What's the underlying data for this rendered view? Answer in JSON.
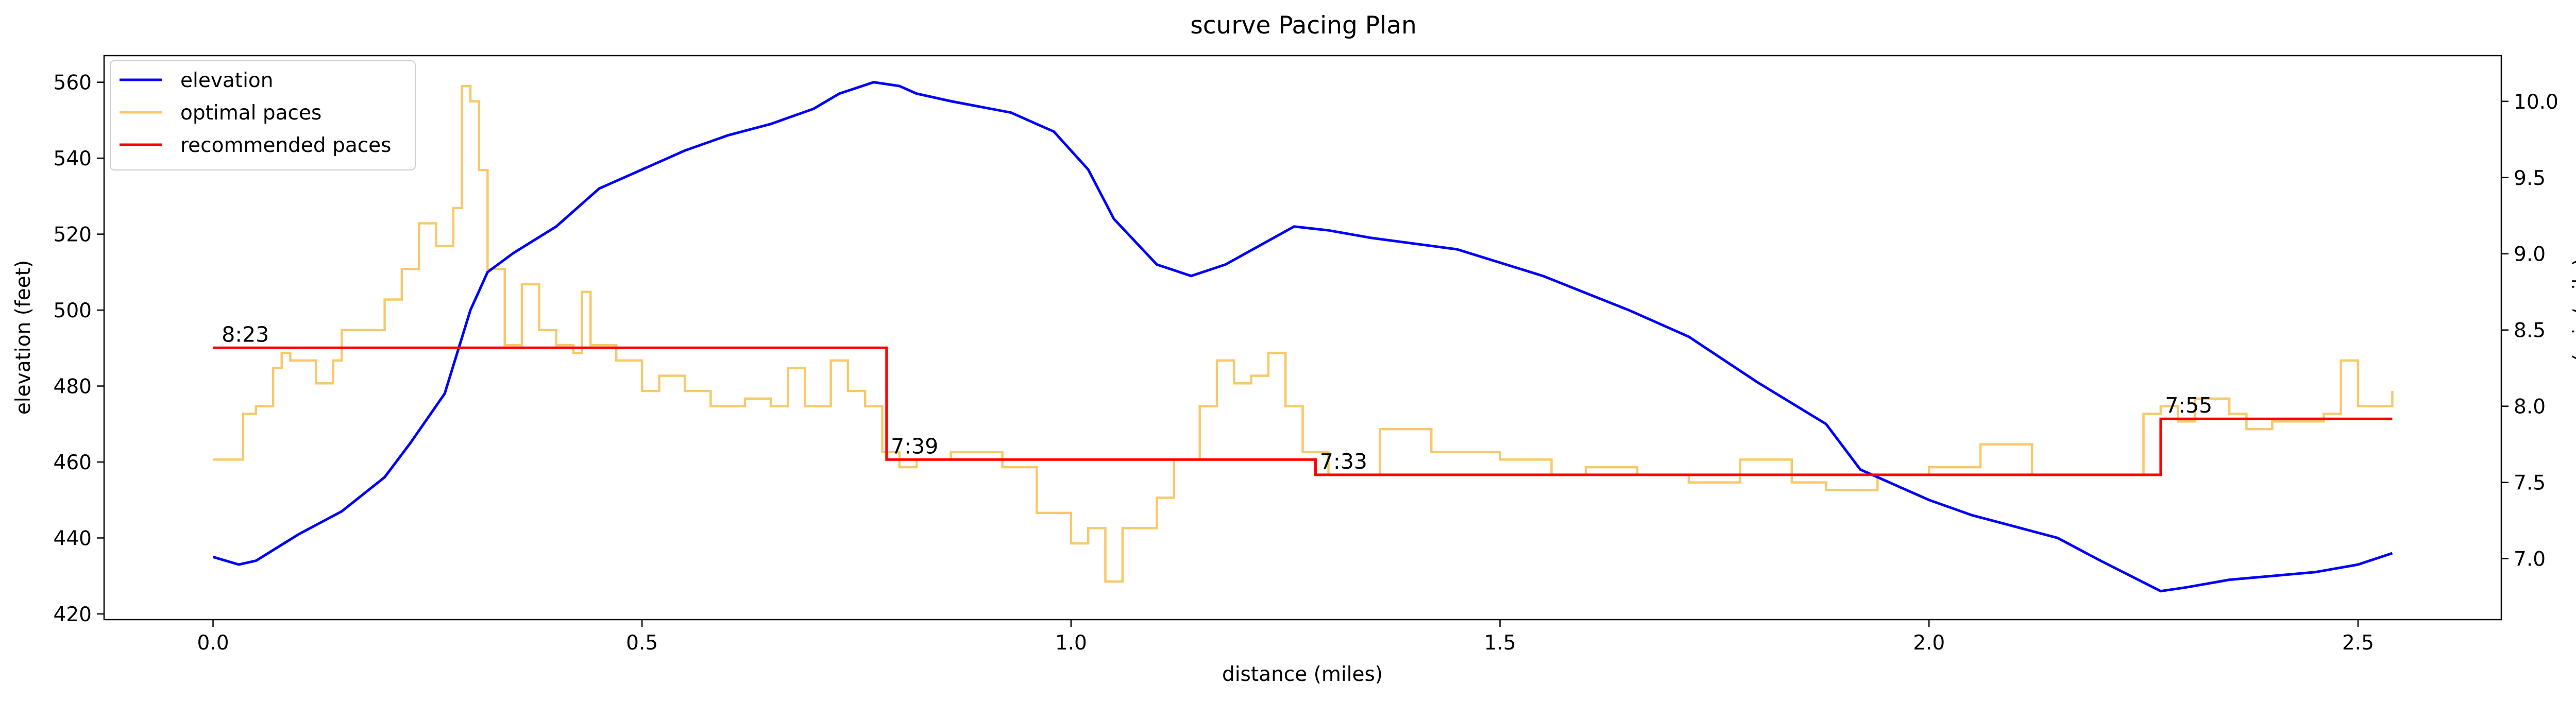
{
  "chart_data": {
    "type": "line",
    "title": "scurve Pacing Plan",
    "xlabel": "distance (miles)",
    "ylabel": "elevation (feet)",
    "ylabel_right": "pace (min/mile)",
    "xlim": [
      -0.127,
      2.667
    ],
    "ylim": [
      418.5,
      567
    ],
    "ylim_right": [
      6.6,
      10.3
    ],
    "x_ticks": [
      0.0,
      0.5,
      1.0,
      1.5,
      2.0,
      2.5
    ],
    "x_tick_labels": [
      "0.0",
      "0.5",
      "1.0",
      "1.5",
      "2.0",
      "2.5"
    ],
    "y_ticks": [
      420,
      440,
      460,
      480,
      500,
      520,
      540,
      560
    ],
    "y_tick_labels": [
      "420",
      "440",
      "460",
      "480",
      "500",
      "520",
      "540",
      "560"
    ],
    "y_right_ticks": [
      7.0,
      7.5,
      8.0,
      8.5,
      9.0,
      9.5,
      10.0
    ],
    "y_right_tick_labels": [
      "7.0",
      "7.5",
      "8.0",
      "8.5",
      "9.0",
      "9.5",
      "10.0"
    ],
    "legend": {
      "position": "top-left",
      "entries": [
        {
          "label": "elevation",
          "color": "#0000ff"
        },
        {
          "label": "optimal paces",
          "color": "#f7c96b"
        },
        {
          "label": "recommended paces",
          "color": "#ff0000"
        }
      ]
    },
    "series": [
      {
        "name": "elevation",
        "axis": "left",
        "color": "#0000ff",
        "x": [
          0.0,
          0.03,
          0.05,
          0.1,
          0.15,
          0.2,
          0.23,
          0.27,
          0.3,
          0.32,
          0.35,
          0.4,
          0.45,
          0.5,
          0.55,
          0.6,
          0.65,
          0.7,
          0.73,
          0.77,
          0.8,
          0.82,
          0.86,
          0.93,
          0.98,
          1.02,
          1.05,
          1.1,
          1.14,
          1.18,
          1.22,
          1.26,
          1.3,
          1.35,
          1.45,
          1.55,
          1.65,
          1.72,
          1.8,
          1.88,
          1.92,
          2.0,
          2.05,
          2.1,
          2.15,
          2.2,
          2.27,
          2.3,
          2.35,
          2.4,
          2.45,
          2.5,
          2.54
        ],
        "values": [
          435,
          433,
          434,
          441,
          447,
          456,
          465,
          478,
          500,
          510,
          515,
          522,
          532,
          537,
          542,
          546,
          549,
          553,
          557,
          560,
          559,
          557,
          555,
          552,
          547,
          537,
          524,
          512,
          509,
          512,
          517,
          522,
          521,
          519,
          516,
          509,
          500,
          493,
          481,
          470,
          458,
          450,
          446,
          443,
          440,
          434,
          426,
          427,
          429,
          430,
          431,
          433,
          436
        ]
      },
      {
        "name": "optimal paces",
        "axis": "right",
        "color": "#f7c96b",
        "step": true,
        "x": [
          0.0,
          0.025,
          0.035,
          0.05,
          0.07,
          0.08,
          0.09,
          0.12,
          0.14,
          0.15,
          0.17,
          0.2,
          0.22,
          0.24,
          0.26,
          0.28,
          0.29,
          0.3,
          0.31,
          0.32,
          0.34,
          0.36,
          0.38,
          0.4,
          0.42,
          0.43,
          0.44,
          0.47,
          0.5,
          0.52,
          0.55,
          0.58,
          0.62,
          0.65,
          0.67,
          0.69,
          0.72,
          0.74,
          0.76,
          0.78,
          0.8,
          0.82,
          0.86,
          0.92,
          0.96,
          1.0,
          1.02,
          1.04,
          1.06,
          1.1,
          1.12,
          1.15,
          1.17,
          1.19,
          1.21,
          1.23,
          1.25,
          1.27,
          1.3,
          1.36,
          1.42,
          1.5,
          1.56,
          1.6,
          1.66,
          1.72,
          1.78,
          1.84,
          1.88,
          1.94,
          2.0,
          2.06,
          2.12,
          2.17,
          2.2,
          2.25,
          2.27,
          2.29,
          2.31,
          2.35,
          2.37,
          2.4,
          2.43,
          2.46,
          2.48,
          2.5,
          2.54
        ],
        "values": [
          7.65,
          7.65,
          7.95,
          8.0,
          8.25,
          8.35,
          8.3,
          8.15,
          8.3,
          8.5,
          8.5,
          8.7,
          8.9,
          9.2,
          9.05,
          9.3,
          10.1,
          10.0,
          9.55,
          8.9,
          8.4,
          8.8,
          8.5,
          8.4,
          8.35,
          8.75,
          8.4,
          8.3,
          8.1,
          8.2,
          8.1,
          8.0,
          8.05,
          8.0,
          8.25,
          8.0,
          8.3,
          8.1,
          8.0,
          7.7,
          7.6,
          7.65,
          7.7,
          7.6,
          7.3,
          7.1,
          7.2,
          6.85,
          7.2,
          7.4,
          7.65,
          8.0,
          8.3,
          8.15,
          8.2,
          8.35,
          8.0,
          7.7,
          7.55,
          7.85,
          7.7,
          7.65,
          7.55,
          7.6,
          7.55,
          7.5,
          7.65,
          7.5,
          7.45,
          7.55,
          7.6,
          7.75,
          7.55,
          7.55,
          7.55,
          7.95,
          8.0,
          7.9,
          8.05,
          7.95,
          7.85,
          7.9,
          7.9,
          7.95,
          8.3,
          8.0,
          8.1
        ]
      },
      {
        "name": "recommended paces",
        "axis": "right",
        "color": "#ff0000",
        "step": true,
        "x": [
          0.0,
          0.785,
          1.285,
          2.27,
          2.54
        ],
        "values": [
          8.383,
          7.65,
          7.55,
          7.917,
          7.917
        ]
      }
    ],
    "annotations": [
      {
        "text": "8:23",
        "x": 0.01,
        "y": 8.383
      },
      {
        "text": "7:39",
        "x": 0.79,
        "y": 7.65
      },
      {
        "text": "7:33",
        "x": 1.29,
        "y": 7.55
      },
      {
        "text": "7:55",
        "x": 2.275,
        "y": 7.917
      }
    ]
  }
}
